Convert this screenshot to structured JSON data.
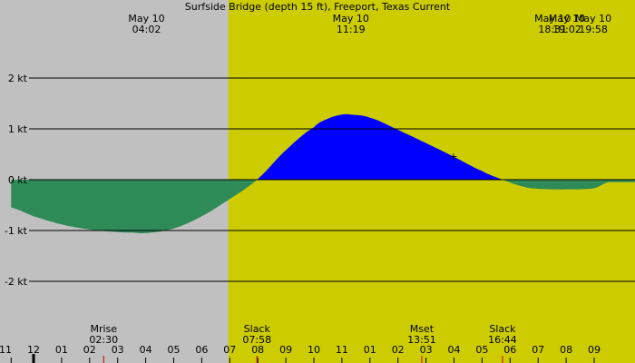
{
  "chart_data": {
    "type": "area",
    "title": "Surfside Bridge (depth 15 ft), Freeport, Texas Current",
    "ylim": [
      -3.5,
      3.5
    ],
    "y_ticks": [
      {
        "value": 2,
        "label": "2 kt"
      },
      {
        "value": 1,
        "label": "1 kt"
      },
      {
        "value": 0,
        "label": "0 kt"
      },
      {
        "value": -1,
        "label": "-1 kt"
      },
      {
        "value": -2,
        "label": "-2 kt"
      }
    ],
    "x_range_hours": [
      -0.8,
      33.15
    ],
    "daylight_hours": [
      6.95,
      29.9
    ],
    "x_ticks": [
      {
        "hour": -0.8,
        "label": "11"
      },
      {
        "hour": 0,
        "label": "12"
      },
      {
        "hour": 1,
        "label": "01"
      },
      {
        "hour": 2,
        "label": "02"
      },
      {
        "hour": 3,
        "label": "03"
      },
      {
        "hour": 4,
        "label": "04"
      },
      {
        "hour": 5,
        "label": "05"
      },
      {
        "hour": 6,
        "label": "06"
      },
      {
        "hour": 7,
        "label": "07"
      },
      {
        "hour": 8,
        "label": "08"
      },
      {
        "hour": 9,
        "label": "09"
      },
      {
        "hour": 10,
        "label": "10"
      },
      {
        "hour": 11,
        "label": "11"
      },
      {
        "hour": 12,
        "label": "01"
      },
      {
        "hour": 13,
        "label": "02"
      },
      {
        "hour": 14,
        "label": "03"
      },
      {
        "hour": 15,
        "label": "04"
      },
      {
        "hour": 16,
        "label": "05"
      },
      {
        "hour": 17,
        "label": "06"
      },
      {
        "hour": 18,
        "label": "07"
      },
      {
        "hour": 19,
        "label": "08"
      },
      {
        "hour": 20,
        "label": "09"
      }
    ],
    "top_labels": [
      {
        "hour": 4.03,
        "date": "May 10",
        "time": "04:02",
        "anchor": "middle"
      },
      {
        "hour": 11.32,
        "date": "May 10",
        "time": "11:19",
        "anchor": "middle"
      },
      {
        "hour": 18.52,
        "date": "May 10",
        "time": "18:31",
        "anchor": "middle"
      },
      {
        "hour": 19.03,
        "date": "May 10",
        "time": "19:02",
        "anchor": "middle"
      },
      {
        "hour": 19.97,
        "date": "May 10",
        "time": "19:58",
        "anchor": "middle"
      }
    ],
    "event_labels": [
      {
        "hour": 2.5,
        "name": "Mrise",
        "time": "02:30",
        "marker_color": "#cc0000"
      },
      {
        "hour": 7.97,
        "name": "Slack",
        "time": "07:58",
        "marker_color": "#cc0000"
      },
      {
        "hour": 13.85,
        "name": "Mset",
        "time": "13:51",
        "marker_color": "#cc0000"
      },
      {
        "hour": 16.73,
        "name": "Slack",
        "time": "16:44",
        "marker_color": "#cc0000"
      }
    ],
    "series": [
      {
        "x": [
          -0.8,
          0,
          1,
          2,
          3,
          3.5,
          4,
          5,
          6,
          7,
          7.97,
          9,
          10,
          10.5,
          11,
          11.32,
          12,
          13,
          14,
          15,
          16,
          16.73,
          17.5,
          18,
          19,
          20,
          20.5
        ],
        "y": [
          -0.55,
          -0.72,
          -0.88,
          -0.98,
          -1.03,
          -1.04,
          -1.05,
          -0.96,
          -0.72,
          -0.38,
          0,
          0.58,
          1.03,
          1.2,
          1.28,
          1.28,
          1.22,
          0.98,
          0.72,
          0.45,
          0.17,
          0,
          -0.14,
          -0.18,
          -0.19,
          -0.17,
          -0.05
        ]
      }
    ],
    "colors": {
      "background": "#c0c0c0",
      "daylight": "#cccc00",
      "flood": "#0000ff",
      "ebb": "#2e8b57",
      "gridline": "#000000",
      "marker": "#cc0000"
    }
  }
}
